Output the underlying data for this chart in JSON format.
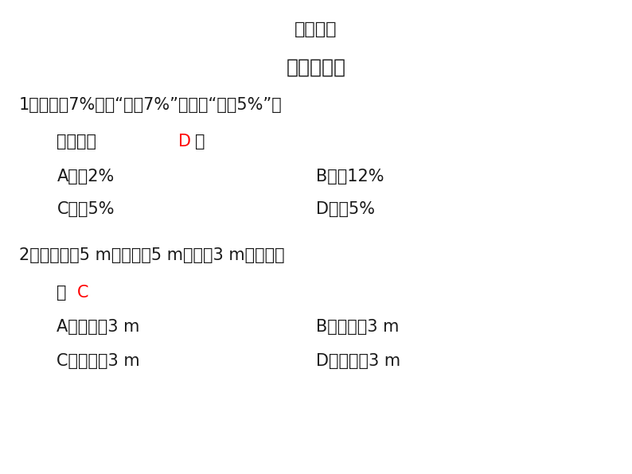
{
  "background_color": "#ffffff",
  "title": "课堂导学",
  "subtitle": "对点训练一",
  "q1_line1": "1．如果＋7%表示“增加7%”，那么“减入5%”可",
  "q1_line2": "以记作（",
  "q1_answer": "D",
  "q1_close": "）",
  "q1_A": "A．＋2%",
  "q1_B": "B．－12%",
  "q1_C": "C．＋5%",
  "q1_D": "D．－5%",
  "q2_line1": "2．若向东劅5 m，记为＋5 m，则－3 m表示为（",
  "q2_line2": "）",
  "q2_answer": "C",
  "q2_A": "A．向东劅3 m",
  "q2_B": "B．向南劅3 m",
  "q2_C": "C．向西劅3 m",
  "q2_D": "D．向北劅3 m",
  "text_color": "#1a1a1a",
  "answer_color": "#ff0000",
  "title_fontsize": 16,
  "subtitle_fontsize": 18,
  "body_fontsize": 15
}
